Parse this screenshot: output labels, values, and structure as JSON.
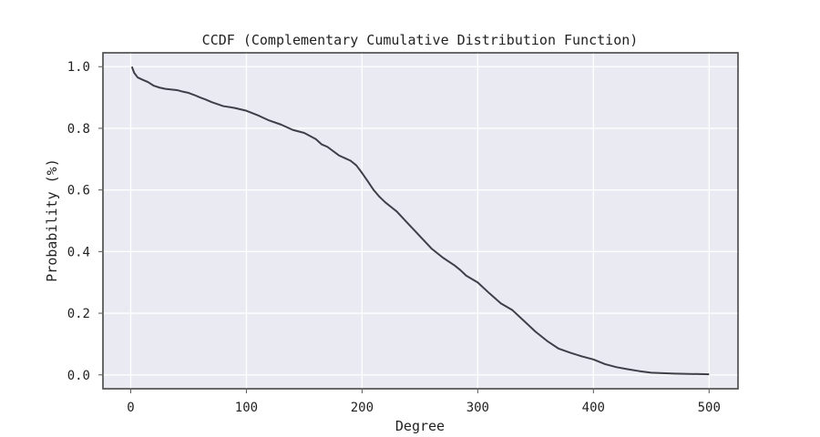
{
  "chart_data": {
    "type": "line",
    "title": "CCDF (Complementary Cumulative Distribution Function)",
    "xlabel": "Degree",
    "ylabel": "Probability (%)",
    "xlim": [
      -24,
      525
    ],
    "ylim": [
      -0.045,
      1.045
    ],
    "xticks": [
      0,
      100,
      200,
      300,
      400,
      500
    ],
    "yticks": [
      0.0,
      0.2,
      0.4,
      0.6,
      0.8,
      1.0
    ],
    "xtick_labels": [
      "0",
      "100",
      "200",
      "300",
      "400",
      "500"
    ],
    "ytick_labels": [
      "0.0",
      "0.2",
      "0.4",
      "0.6",
      "0.8",
      "1.0"
    ],
    "grid": true,
    "series": [
      {
        "color": "#3f3f4a",
        "x": [
          1,
          3,
          6,
          10,
          15,
          20,
          25,
          30,
          40,
          45,
          50,
          55,
          60,
          65,
          70,
          80,
          90,
          100,
          110,
          120,
          130,
          140,
          150,
          160,
          165,
          170,
          180,
          190,
          195,
          200,
          205,
          210,
          215,
          220,
          225,
          230,
          240,
          250,
          260,
          270,
          280,
          285,
          290,
          300,
          310,
          320,
          330,
          340,
          350,
          360,
          370,
          380,
          390,
          400,
          410,
          420,
          430,
          440,
          450,
          470,
          500
        ],
        "y": [
          1.0,
          0.98,
          0.965,
          0.958,
          0.95,
          0.938,
          0.932,
          0.928,
          0.924,
          0.919,
          0.915,
          0.908,
          0.9,
          0.893,
          0.885,
          0.872,
          0.866,
          0.857,
          0.842,
          0.825,
          0.812,
          0.795,
          0.785,
          0.765,
          0.748,
          0.74,
          0.712,
          0.695,
          0.68,
          0.655,
          0.628,
          0.6,
          0.578,
          0.56,
          0.545,
          0.53,
          0.49,
          0.45,
          0.41,
          0.38,
          0.355,
          0.34,
          0.322,
          0.3,
          0.265,
          0.232,
          0.21,
          0.175,
          0.14,
          0.11,
          0.085,
          0.072,
          0.06,
          0.05,
          0.035,
          0.025,
          0.018,
          0.012,
          0.007,
          0.004,
          0.002
        ]
      }
    ]
  }
}
